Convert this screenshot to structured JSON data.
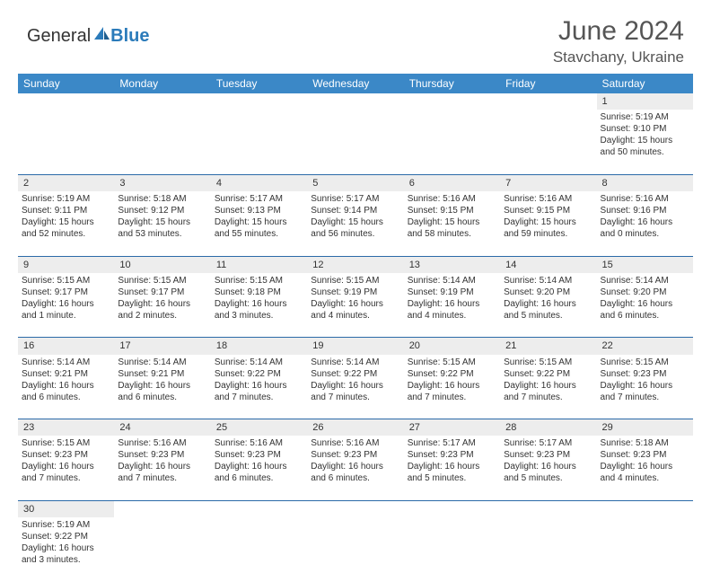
{
  "logo": {
    "text1": "General",
    "text2": "Blue"
  },
  "title": "June 2024",
  "location": "Stavchany, Ukraine",
  "colors": {
    "header_bg": "#3b88c7",
    "header_text": "#ffffff",
    "daynum_bg": "#ededed",
    "cell_border": "#2b6aa8",
    "logo_blue": "#2b7bba"
  },
  "day_headers": [
    "Sunday",
    "Monday",
    "Tuesday",
    "Wednesday",
    "Thursday",
    "Friday",
    "Saturday"
  ],
  "weeks": [
    {
      "nums": [
        "",
        "",
        "",
        "",
        "",
        "",
        "1"
      ],
      "cells": [
        null,
        null,
        null,
        null,
        null,
        null,
        {
          "sunrise": "5:19 AM",
          "sunset": "9:10 PM",
          "daylight": "15 hours and 50 minutes."
        }
      ]
    },
    {
      "nums": [
        "2",
        "3",
        "4",
        "5",
        "6",
        "7",
        "8"
      ],
      "cells": [
        {
          "sunrise": "5:19 AM",
          "sunset": "9:11 PM",
          "daylight": "15 hours and 52 minutes."
        },
        {
          "sunrise": "5:18 AM",
          "sunset": "9:12 PM",
          "daylight": "15 hours and 53 minutes."
        },
        {
          "sunrise": "5:17 AM",
          "sunset": "9:13 PM",
          "daylight": "15 hours and 55 minutes."
        },
        {
          "sunrise": "5:17 AM",
          "sunset": "9:14 PM",
          "daylight": "15 hours and 56 minutes."
        },
        {
          "sunrise": "5:16 AM",
          "sunset": "9:15 PM",
          "daylight": "15 hours and 58 minutes."
        },
        {
          "sunrise": "5:16 AM",
          "sunset": "9:15 PM",
          "daylight": "15 hours and 59 minutes."
        },
        {
          "sunrise": "5:16 AM",
          "sunset": "9:16 PM",
          "daylight": "16 hours and 0 minutes."
        }
      ]
    },
    {
      "nums": [
        "9",
        "10",
        "11",
        "12",
        "13",
        "14",
        "15"
      ],
      "cells": [
        {
          "sunrise": "5:15 AM",
          "sunset": "9:17 PM",
          "daylight": "16 hours and 1 minute."
        },
        {
          "sunrise": "5:15 AM",
          "sunset": "9:17 PM",
          "daylight": "16 hours and 2 minutes."
        },
        {
          "sunrise": "5:15 AM",
          "sunset": "9:18 PM",
          "daylight": "16 hours and 3 minutes."
        },
        {
          "sunrise": "5:15 AM",
          "sunset": "9:19 PM",
          "daylight": "16 hours and 4 minutes."
        },
        {
          "sunrise": "5:14 AM",
          "sunset": "9:19 PM",
          "daylight": "16 hours and 4 minutes."
        },
        {
          "sunrise": "5:14 AM",
          "sunset": "9:20 PM",
          "daylight": "16 hours and 5 minutes."
        },
        {
          "sunrise": "5:14 AM",
          "sunset": "9:20 PM",
          "daylight": "16 hours and 6 minutes."
        }
      ]
    },
    {
      "nums": [
        "16",
        "17",
        "18",
        "19",
        "20",
        "21",
        "22"
      ],
      "cells": [
        {
          "sunrise": "5:14 AM",
          "sunset": "9:21 PM",
          "daylight": "16 hours and 6 minutes."
        },
        {
          "sunrise": "5:14 AM",
          "sunset": "9:21 PM",
          "daylight": "16 hours and 6 minutes."
        },
        {
          "sunrise": "5:14 AM",
          "sunset": "9:22 PM",
          "daylight": "16 hours and 7 minutes."
        },
        {
          "sunrise": "5:14 AM",
          "sunset": "9:22 PM",
          "daylight": "16 hours and 7 minutes."
        },
        {
          "sunrise": "5:15 AM",
          "sunset": "9:22 PM",
          "daylight": "16 hours and 7 minutes."
        },
        {
          "sunrise": "5:15 AM",
          "sunset": "9:22 PM",
          "daylight": "16 hours and 7 minutes."
        },
        {
          "sunrise": "5:15 AM",
          "sunset": "9:23 PM",
          "daylight": "16 hours and 7 minutes."
        }
      ]
    },
    {
      "nums": [
        "23",
        "24",
        "25",
        "26",
        "27",
        "28",
        "29"
      ],
      "cells": [
        {
          "sunrise": "5:15 AM",
          "sunset": "9:23 PM",
          "daylight": "16 hours and 7 minutes."
        },
        {
          "sunrise": "5:16 AM",
          "sunset": "9:23 PM",
          "daylight": "16 hours and 7 minutes."
        },
        {
          "sunrise": "5:16 AM",
          "sunset": "9:23 PM",
          "daylight": "16 hours and 6 minutes."
        },
        {
          "sunrise": "5:16 AM",
          "sunset": "9:23 PM",
          "daylight": "16 hours and 6 minutes."
        },
        {
          "sunrise": "5:17 AM",
          "sunset": "9:23 PM",
          "daylight": "16 hours and 5 minutes."
        },
        {
          "sunrise": "5:17 AM",
          "sunset": "9:23 PM",
          "daylight": "16 hours and 5 minutes."
        },
        {
          "sunrise": "5:18 AM",
          "sunset": "9:23 PM",
          "daylight": "16 hours and 4 minutes."
        }
      ]
    },
    {
      "nums": [
        "30",
        "",
        "",
        "",
        "",
        "",
        ""
      ],
      "cells": [
        {
          "sunrise": "5:19 AM",
          "sunset": "9:22 PM",
          "daylight": "16 hours and 3 minutes."
        },
        null,
        null,
        null,
        null,
        null,
        null
      ]
    }
  ],
  "labels": {
    "sunrise": "Sunrise:",
    "sunset": "Sunset:",
    "daylight": "Daylight:"
  }
}
